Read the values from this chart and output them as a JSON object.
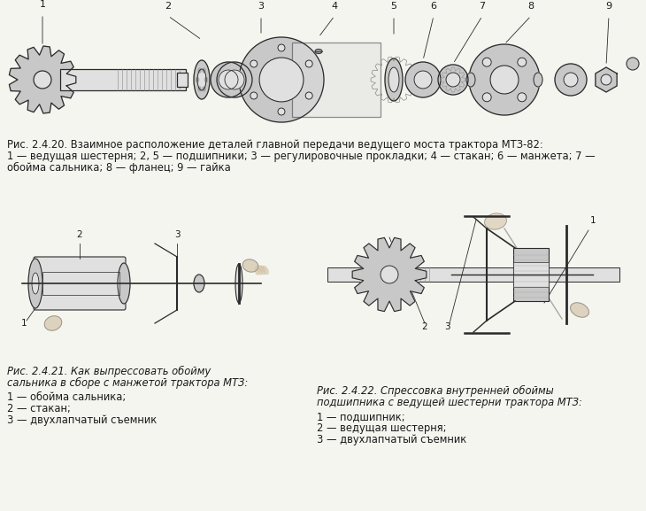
{
  "background_color": "#f5f5f0",
  "fig_width": 7.3,
  "fig_height": 5.77,
  "dpi": 100,
  "caption1_line1": "Рис. 2.4.20. Взаимное расположение деталей главной передачи ведущего моста трактора МТЗ-82:",
  "caption1_line2": "1 — ведущая шестерня; 2, 5 — подшипники; 3 — регулировочные прокладки; 4 — стакан; 6 — манжета; 7 —",
  "caption1_line3": "обойма сальника; 8 — фланец; 9 — гайка",
  "caption2_line1": "Рис. 2.4.21. Как выпрессовать обойму",
  "caption2_line2": "сальника в сборе с манжетой трактора МТЗ:",
  "caption2_line3": "1 — обойма сальника;",
  "caption2_line4": "2 — стакан;",
  "caption2_line5": "3 — двухлапчатый съемник",
  "caption3_line1": "Рис. 2.4.22. Спрессовка внутренней обоймы",
  "caption3_line2": "подшипника с ведущей шестерни трактора МТЗ:",
  "caption3_line3": "1 — подшипник;",
  "caption3_line4": "2 — ведущая шестерня;",
  "caption3_line5": "3 — двухлапчатый съемник",
  "text_color": "#1a1a1a",
  "line_color": "#2a2a2a",
  "part_fill": "#c8c8c8",
  "part_fill_light": "#e0e0e0",
  "font_size": 8.3
}
